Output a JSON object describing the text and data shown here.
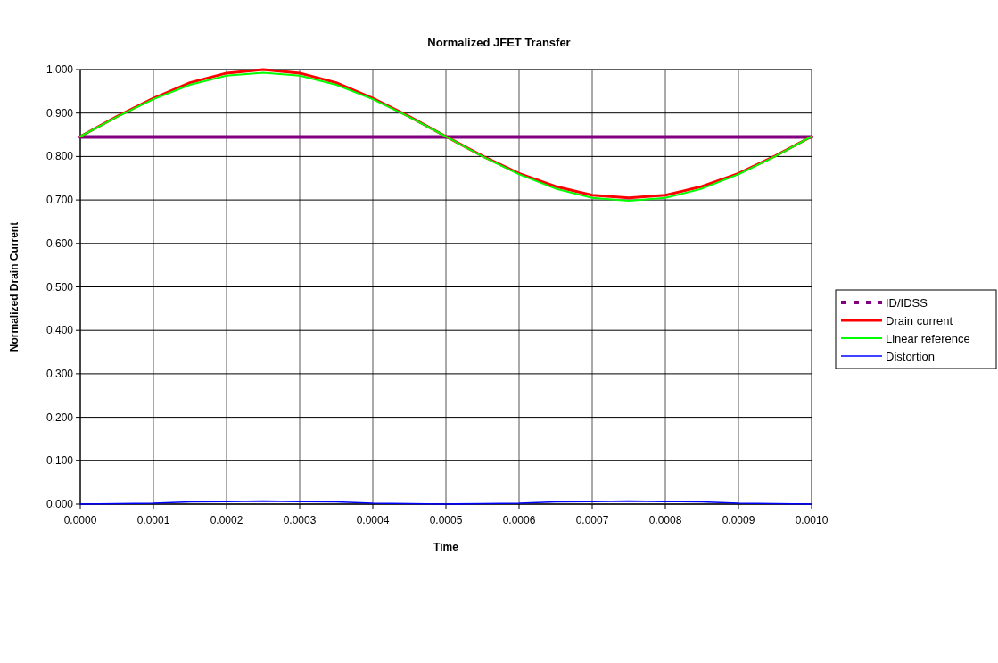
{
  "chart_data": {
    "type": "line",
    "title": "Normalized JFET Transfer",
    "xlabel": "Time",
    "ylabel": "Normalized Drain Current",
    "xlim": [
      0,
      0.001
    ],
    "ylim": [
      0,
      1
    ],
    "xticks": [
      {
        "value": 0,
        "label": "0.0000"
      },
      {
        "value": 0.0001,
        "label": "0.0001"
      },
      {
        "value": 0.0002,
        "label": "0.0002"
      },
      {
        "value": 0.0003,
        "label": "0.0003"
      },
      {
        "value": 0.0004,
        "label": "0.0004"
      },
      {
        "value": 0.0005,
        "label": "0.0005"
      },
      {
        "value": 0.0006,
        "label": "0.0006"
      },
      {
        "value": 0.0007,
        "label": "0.0007"
      },
      {
        "value": 0.0008,
        "label": "0.0008"
      },
      {
        "value": 0.0009,
        "label": "0.0009"
      },
      {
        "value": 0.001,
        "label": "0.0010"
      }
    ],
    "yticks": [
      {
        "value": 0,
        "label": "0.000"
      },
      {
        "value": 0.1,
        "label": "0.100"
      },
      {
        "value": 0.2,
        "label": "0.200"
      },
      {
        "value": 0.3,
        "label": "0.300"
      },
      {
        "value": 0.4,
        "label": "0.400"
      },
      {
        "value": 0.5,
        "label": "0.500"
      },
      {
        "value": 0.6,
        "label": "0.600"
      },
      {
        "value": 0.7,
        "label": "0.700"
      },
      {
        "value": 0.8,
        "label": "0.800"
      },
      {
        "value": 0.9,
        "label": "0.900"
      },
      {
        "value": 1,
        "label": "1.000"
      }
    ],
    "grid": true,
    "legend": "right",
    "marker": "none",
    "x": [
      0,
      5e-05,
      0.0001,
      0.00015,
      0.0002,
      0.00025,
      0.0003,
      0.00035,
      0.0004,
      0.00045,
      0.0005,
      0.00055,
      0.0006,
      0.00065,
      0.0007,
      0.00075,
      0.0008,
      0.00085,
      0.0009,
      0.00095,
      0.001
    ],
    "series": [
      {
        "name": "ID/IDSS",
        "color": "#800080",
        "x": [
          0,
          0.001
        ],
        "values": [
          0.845,
          0.845
        ]
      },
      {
        "name": "Drain current",
        "color": "#ff0000",
        "values": [
          0.846,
          0.892,
          0.934,
          0.97,
          0.992,
          1.0,
          0.992,
          0.97,
          0.934,
          0.892,
          0.846,
          0.801,
          0.761,
          0.731,
          0.711,
          0.705,
          0.711,
          0.731,
          0.761,
          0.801,
          0.846
        ]
      },
      {
        "name": "Linear reference",
        "color": "#00ff00",
        "values": [
          0.846,
          0.891,
          0.932,
          0.965,
          0.986,
          0.993,
          0.986,
          0.965,
          0.932,
          0.891,
          0.846,
          0.8,
          0.759,
          0.726,
          0.705,
          0.698,
          0.705,
          0.726,
          0.759,
          0.8,
          0.846
        ]
      },
      {
        "name": "Distortion",
        "color": "#0000ff",
        "values": [
          0,
          0.001,
          0.002,
          0.005,
          0.006,
          0.007,
          0.006,
          0.005,
          0.002,
          0.001,
          0,
          0.001,
          0.002,
          0.005,
          0.006,
          0.007,
          0.006,
          0.005,
          0.002,
          0.001,
          0
        ]
      }
    ]
  }
}
